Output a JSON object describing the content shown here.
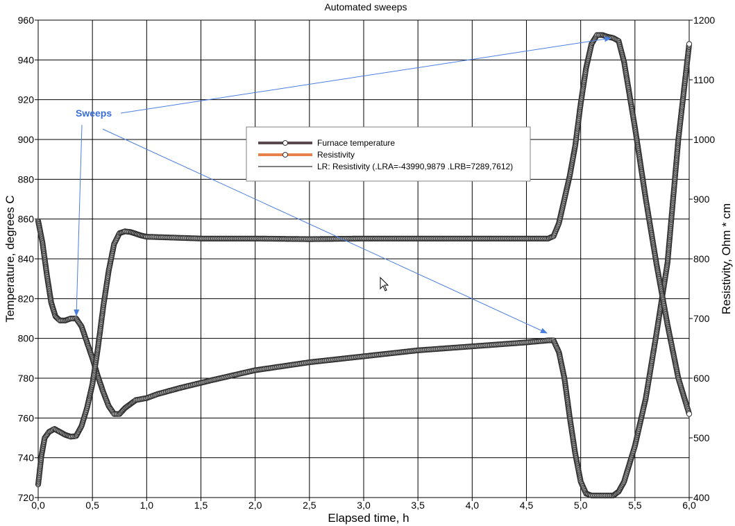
{
  "chart_data": {
    "type": "scatter",
    "title": "Automated sweeps",
    "xlabel": "Elapsed time, h",
    "ylabel": "Temperature, degrees C",
    "y2label": "Resistivity, Ohm * cm",
    "xlim": [
      0.0,
      6.0
    ],
    "ylim": [
      720,
      960
    ],
    "y2lim": [
      400,
      1200
    ],
    "x_ticks": [
      "0,0",
      "0,5",
      "1,0",
      "1,5",
      "2,0",
      "2,5",
      "3,0",
      "3,5",
      "4,0",
      "4,5",
      "5,0",
      "5,5",
      "6,0"
    ],
    "y_ticks": [
      "720",
      "740",
      "760",
      "780",
      "800",
      "820",
      "840",
      "860",
      "880",
      "900",
      "920",
      "940",
      "960"
    ],
    "y2_ticks": [
      "400",
      "500",
      "600",
      "700",
      "800",
      "900",
      "1000",
      "1100",
      "1200"
    ],
    "grid": true,
    "legend": {
      "placement": "top-center",
      "entries": [
        {
          "label": "Furnace temperature",
          "color": "#5a4a50",
          "marker": "circle"
        },
        {
          "label": "Resistivity",
          "color": "#e8804a",
          "marker": "circle"
        },
        {
          "label": "LR: Resistivity (.LRA=-43990,9879 .LRB=7289,7612)",
          "color": "#000000",
          "marker": "none"
        }
      ]
    },
    "series": [
      {
        "name": "Furnace temperature",
        "axis": "left",
        "x": [
          0.0,
          0.04,
          0.08,
          0.12,
          0.16,
          0.2,
          0.25,
          0.3,
          0.35,
          0.4,
          0.45,
          0.5,
          0.55,
          0.6,
          0.65,
          0.7,
          0.75,
          0.8,
          0.85,
          0.9,
          0.95,
          1.0,
          1.1,
          1.3,
          1.6,
          2.0,
          2.5,
          3.0,
          3.5,
          4.0,
          4.5,
          4.7,
          4.75,
          4.8,
          4.85,
          4.9,
          4.95,
          5.0,
          5.05,
          5.1,
          5.15,
          5.2,
          5.25,
          5.3,
          5.35,
          5.4,
          5.5,
          5.6,
          5.7,
          5.8,
          5.9,
          6.0
        ],
        "y": [
          859,
          848,
          832,
          818,
          811,
          809,
          809,
          810,
          810,
          806,
          798,
          790,
          781,
          773,
          766,
          762,
          762,
          765,
          767,
          769,
          769.5,
          770,
          772,
          775,
          779,
          784,
          788,
          791,
          794,
          796,
          798,
          799,
          799,
          793,
          780,
          760,
          742,
          728,
          722,
          721,
          721,
          721,
          721,
          721,
          723,
          728,
          746,
          770,
          803,
          838,
          900,
          948
        ]
      },
      {
        "name": "Resistivity",
        "axis": "right",
        "x": [
          0.0,
          0.03,
          0.06,
          0.1,
          0.15,
          0.2,
          0.25,
          0.3,
          0.35,
          0.4,
          0.45,
          0.5,
          0.55,
          0.6,
          0.65,
          0.7,
          0.75,
          0.8,
          0.85,
          0.9,
          0.95,
          1.0,
          1.5,
          2.0,
          2.5,
          3.0,
          3.5,
          4.0,
          4.5,
          4.7,
          4.75,
          4.8,
          4.85,
          4.9,
          4.95,
          5.0,
          5.05,
          5.1,
          5.15,
          5.2,
          5.25,
          5.3,
          5.35,
          5.4,
          5.5,
          5.6,
          5.7,
          5.8,
          5.9,
          6.0
        ],
        "y": [
          422,
          470,
          500,
          510,
          515,
          510,
          505,
          502,
          503,
          520,
          550,
          590,
          650,
          720,
          780,
          825,
          843,
          846,
          845,
          842,
          839,
          837,
          834,
          834,
          833,
          834,
          834,
          834,
          834,
          834,
          838,
          860,
          900,
          940,
          990,
          1060,
          1120,
          1160,
          1175,
          1175,
          1172,
          1170,
          1165,
          1130,
          1020,
          900,
          790,
          690,
          600,
          540
        ]
      }
    ],
    "annotations": [
      {
        "text": "Sweeps",
        "color": "#3a6fd8"
      }
    ]
  }
}
